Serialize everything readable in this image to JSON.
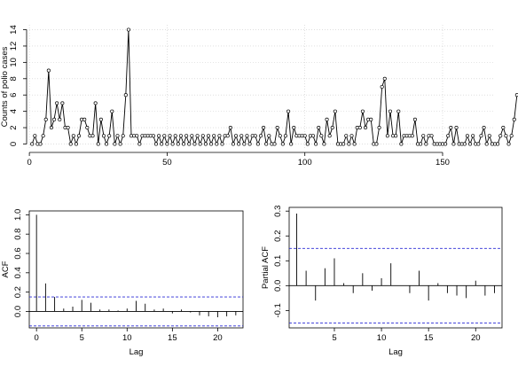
{
  "colors": {
    "axis": "#000000",
    "bound": "#2b2bd6",
    "grid": "#cccccc",
    "series": "#000000"
  },
  "chart_data": [
    {
      "type": "line",
      "title": "",
      "xlabel": "",
      "ylabel": "Counts of polio cases",
      "xlim": [
        0,
        168
      ],
      "ylim": [
        0,
        14
      ],
      "xticks": [
        "0",
        "50",
        "100",
        "150"
      ],
      "yticks": [
        "0",
        "2",
        "4",
        "6",
        "8",
        "10",
        "12",
        "14"
      ],
      "grid": true,
      "marker": "open-circle",
      "x_start": 1,
      "values": [
        0,
        1,
        0,
        0,
        1,
        3,
        9,
        2,
        3,
        5,
        3,
        5,
        2,
        2,
        0,
        1,
        0,
        1,
        3,
        3,
        2,
        1,
        1,
        5,
        0,
        3,
        1,
        0,
        1,
        4,
        0,
        1,
        0,
        1,
        6,
        14,
        1,
        1,
        1,
        0,
        1,
        1,
        1,
        1,
        1,
        0,
        1,
        0,
        1,
        0,
        1,
        0,
        1,
        0,
        1,
        0,
        1,
        0,
        1,
        0,
        1,
        0,
        1,
        0,
        1,
        0,
        1,
        0,
        1,
        0,
        1,
        1,
        2,
        0,
        1,
        0,
        1,
        0,
        1,
        0,
        1,
        1,
        0,
        1,
        2,
        0,
        1,
        0,
        0,
        2,
        1,
        0,
        1,
        4,
        0,
        2,
        1,
        1,
        1,
        1,
        0,
        1,
        1,
        0,
        2,
        1,
        0,
        3,
        1,
        2,
        4,
        0,
        0,
        0,
        1,
        0,
        1,
        0,
        2,
        2,
        4,
        2,
        3,
        3,
        0,
        0,
        2,
        7,
        8,
        1,
        4,
        1,
        1,
        4,
        0,
        1,
        1,
        1,
        1,
        3,
        0,
        0,
        1,
        0,
        1,
        1,
        0,
        0,
        0,
        0,
        0,
        1,
        2,
        0,
        2,
        0,
        0,
        0,
        1,
        0,
        1,
        0,
        0,
        1,
        2,
        0,
        1,
        0,
        0,
        0,
        1,
        2,
        1,
        0,
        1,
        3,
        6
      ]
    },
    {
      "type": "bar",
      "title": "",
      "xlabel": "Lag",
      "ylabel": "ACF",
      "xlim": [
        0,
        22
      ],
      "ylim": [
        -0.15,
        1.0
      ],
      "xticks": [
        "0",
        "5",
        "10",
        "15",
        "20"
      ],
      "yticks": [
        "0.0",
        "0.2",
        "0.4",
        "0.6",
        "0.8",
        "1.0"
      ],
      "lags": [
        0,
        1,
        2,
        3,
        4,
        5,
        6,
        7,
        8,
        9,
        10,
        11,
        12,
        13,
        14,
        15,
        16,
        17,
        18,
        19,
        20,
        21,
        22
      ],
      "values": [
        1.0,
        0.29,
        0.15,
        0.03,
        0.05,
        0.12,
        0.09,
        0.02,
        0.02,
        0.01,
        0.03,
        0.11,
        0.08,
        0.02,
        0.03,
        -0.02,
        0.02,
        -0.01,
        -0.04,
        -0.05,
        -0.06,
        -0.05,
        -0.04
      ],
      "confidence_bound": 0.15
    },
    {
      "type": "bar",
      "title": "",
      "xlabel": "Lag",
      "ylabel": "Partial ACF",
      "xlim": [
        1,
        22
      ],
      "ylim": [
        -0.15,
        0.3
      ],
      "xticks": [
        "5",
        "10",
        "15",
        "20"
      ],
      "yticks": [
        "-0.1",
        "0.0",
        "0.1",
        "0.2",
        "0.3"
      ],
      "lags": [
        1,
        2,
        3,
        4,
        5,
        6,
        7,
        8,
        9,
        10,
        11,
        12,
        13,
        14,
        15,
        16,
        17,
        18,
        19,
        20,
        21,
        22
      ],
      "values": [
        0.29,
        0.06,
        -0.06,
        0.07,
        0.11,
        0.01,
        -0.03,
        0.05,
        -0.02,
        0.03,
        0.09,
        0.0,
        -0.03,
        0.06,
        -0.06,
        0.01,
        -0.03,
        -0.04,
        -0.05,
        0.02,
        -0.04,
        -0.03
      ],
      "confidence_bound": 0.15
    }
  ]
}
